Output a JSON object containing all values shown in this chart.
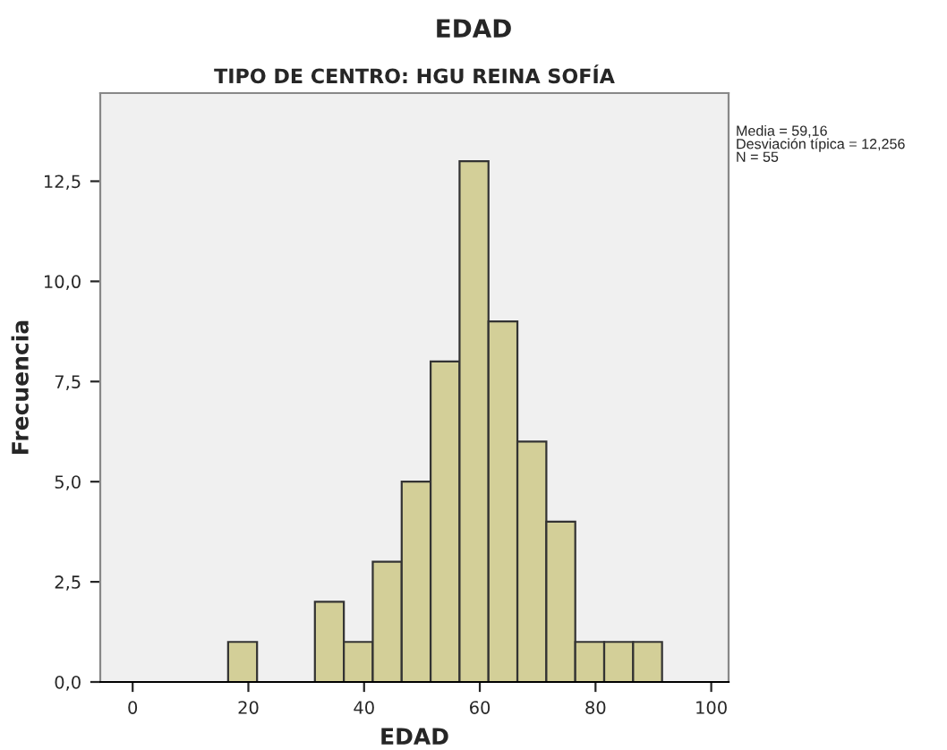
{
  "chart_data": {
    "type": "histogram",
    "title": "EDAD",
    "subtitle": "TIPO DE CENTRO: HGU REINA SOFÍA",
    "xlabel": "EDAD",
    "ylabel": "Frecuencia",
    "bins": [
      16.5,
      21.5,
      26.5,
      31.5,
      36.5,
      41.5,
      46.5,
      51.5,
      56.5,
      61.5,
      66.5,
      71.5,
      76.5,
      81.5,
      86.5,
      91.5
    ],
    "values": [
      1,
      0,
      0,
      2,
      1,
      3,
      5,
      8,
      13,
      9,
      6,
      4,
      1,
      1,
      1
    ],
    "color": "#d3cf98",
    "xlim": [
      -5.6,
      103
    ],
    "xticks": [
      0,
      20,
      40,
      60,
      80,
      100
    ],
    "ylim": [
      0,
      14.7
    ],
    "yticks": [
      {
        "value": 0,
        "label": "0,0"
      },
      {
        "value": 2.5,
        "label": "2,5"
      },
      {
        "value": 5,
        "label": "5,0"
      },
      {
        "value": 7.5,
        "label": "7,5"
      },
      {
        "value": 10,
        "label": "10,0"
      },
      {
        "value": 12.5,
        "label": "12,5"
      }
    ],
    "grid": false,
    "annotations": [
      "Media = 59,16\nDesviación típica = 12,256\nN = 55"
    ]
  }
}
